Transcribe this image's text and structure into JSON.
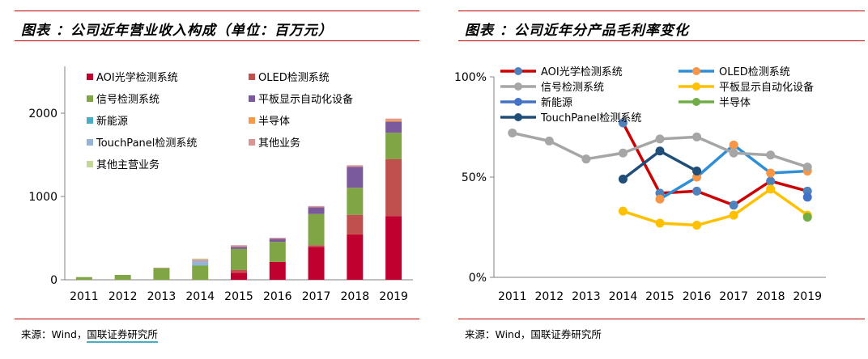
{
  "left": {
    "title": "图表 ：公司近年营业收入构成（单位：百万元）",
    "source_prefix": "来源：Wind，",
    "source_org": "国联证券研究所"
  },
  "right": {
    "title": "图表 ：公司近年分产品毛利率变化",
    "source": "来源：Wind，国联证券研究所"
  },
  "chart_data": [
    {
      "type": "bar",
      "stacked": true,
      "title": "图表 ：公司近年营业收入构成（单位：百万元）",
      "categories": [
        "2011",
        "2012",
        "2013",
        "2014",
        "2015",
        "2016",
        "2017",
        "2018",
        "2019"
      ],
      "ylim": [
        0,
        2000
      ],
      "yticks": [
        0,
        1000,
        2000
      ],
      "grid": false,
      "legend_position": "top-left",
      "series": [
        {
          "name": "AOI光学检测系统",
          "color": "#c0002f",
          "values": [
            0,
            0,
            0,
            0,
            85,
            215,
            395,
            545,
            765
          ]
        },
        {
          "name": "OLED检测系统",
          "color": "#c0504d",
          "values": [
            0,
            0,
            0,
            0,
            35,
            0,
            20,
            235,
            685
          ]
        },
        {
          "name": "信号检测系统",
          "color": "#7fa545",
          "values": [
            32,
            58,
            140,
            170,
            250,
            240,
            375,
            325,
            315
          ]
        },
        {
          "name": "平板显示自动化设备",
          "color": "#7a5a9c",
          "values": [
            0,
            0,
            0,
            0,
            25,
            35,
            80,
            250,
            135
          ]
        },
        {
          "name": "新能源",
          "color": "#4aacc6",
          "values": [
            0,
            0,
            0,
            0,
            0,
            0,
            0,
            0,
            0
          ]
        },
        {
          "name": "半导体",
          "color": "#f59a4a",
          "values": [
            0,
            0,
            0,
            0,
            0,
            0,
            0,
            0,
            20
          ]
        },
        {
          "name": "TouchPanel检测系统",
          "color": "#95b3d7",
          "values": [
            0,
            0,
            0,
            55,
            0,
            0,
            0,
            0,
            0
          ]
        },
        {
          "name": "其他业务",
          "color": "#d99594",
          "values": [
            0,
            0,
            5,
            20,
            20,
            15,
            15,
            20,
            15
          ]
        },
        {
          "name": "其他主营业务",
          "color": "#c4d79b",
          "values": [
            0,
            0,
            0,
            10,
            0,
            0,
            0,
            0,
            0
          ]
        }
      ]
    },
    {
      "type": "line",
      "title": "图表 ：公司近年分产品毛利率变化",
      "categories": [
        "2011",
        "2012",
        "2013",
        "2014",
        "2015",
        "2016",
        "2017",
        "2018",
        "2019"
      ],
      "ylim": [
        0,
        100
      ],
      "yticks": [
        0,
        50,
        100
      ],
      "ytick_labels": [
        "0%",
        "50%",
        "100%"
      ],
      "grid": false,
      "legend_position": "top",
      "series": [
        {
          "name": "AOI光学检测系统",
          "color": "#cc0000",
          "marker": "#4f81bd",
          "values": [
            null,
            null,
            null,
            77,
            42,
            43,
            36,
            48,
            43
          ]
        },
        {
          "name": "OLED检测系统",
          "color": "#2f8fd6",
          "marker": "#f79646",
          "values": [
            null,
            null,
            null,
            null,
            39,
            50,
            66,
            52,
            53
          ]
        },
        {
          "name": "信号检测系统",
          "color": "#a6a6a6",
          "marker": "#a6a6a6",
          "values": [
            72,
            68,
            59,
            62,
            69,
            70,
            62,
            61,
            55
          ]
        },
        {
          "name": "平板显示自动化设备",
          "color": "#ffc000",
          "marker": "#ffc000",
          "values": [
            null,
            null,
            null,
            33,
            27,
            26,
            31,
            44,
            31
          ]
        },
        {
          "name": "新能源",
          "color": "#4472c4",
          "marker": "#4472c4",
          "values": [
            null,
            null,
            null,
            null,
            null,
            null,
            null,
            null,
            40
          ]
        },
        {
          "name": "半导体",
          "color": "#70ad47",
          "marker": "#70ad47",
          "values": [
            null,
            null,
            null,
            null,
            null,
            null,
            null,
            null,
            30
          ]
        },
        {
          "name": "TouchPanel检测系统",
          "color": "#1f4e79",
          "marker": "#1f4e79",
          "values": [
            null,
            null,
            null,
            49,
            63,
            53,
            null,
            null,
            null
          ]
        }
      ]
    }
  ]
}
